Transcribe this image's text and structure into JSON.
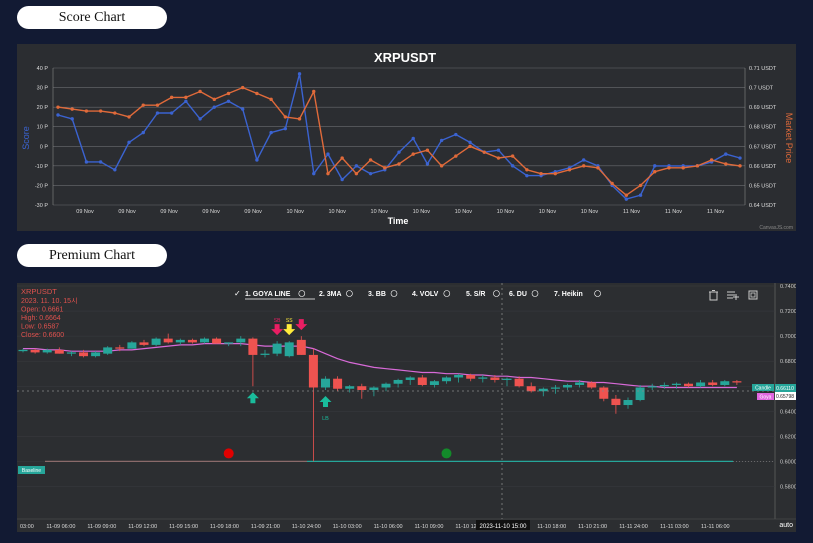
{
  "score_section": {
    "label": "Score Chart"
  },
  "premium_section": {
    "label": "Premium Chart"
  },
  "chart_data": [
    {
      "type": "line",
      "title": "XRPUSDT",
      "xlabel": "Time",
      "ylabel": "Score",
      "y2label": "Market Price",
      "ylim": [
        -30,
        40
      ],
      "y2lim": [
        0.64,
        0.71
      ],
      "y_ticks": [
        "40 P",
        "30 P",
        "20 P",
        "10 P",
        "0 P",
        "-10 P",
        "-20 P",
        "-30 P"
      ],
      "y2_ticks": [
        "0.71 USDT",
        "0.7 USDT",
        "0.69 USDT",
        "0.68 USDT",
        "0.67 USDT",
        "0.66 USDT",
        "0.65 USDT",
        "0.64 USDT"
      ],
      "x_tick_labels": [
        "09 Nov",
        "09 Nov",
        "09 Nov",
        "09 Nov",
        "09 Nov",
        "10 Nov",
        "10 Nov",
        "10 Nov",
        "10 Nov",
        "10 Nov",
        "10 Nov",
        "10 Nov",
        "10 Nov",
        "11 Nov",
        "11 Nov",
        "11 Nov"
      ],
      "credit": "CanvasJS.com",
      "grid": true,
      "series": [
        {
          "name": "Score",
          "color": "#3b63d1",
          "values": [
            16,
            14,
            -8,
            -8,
            -12,
            2,
            7,
            17,
            17,
            23,
            14,
            20,
            23,
            19,
            -7,
            7,
            9,
            37,
            -14,
            -4,
            -17,
            -10,
            -14,
            -12,
            -3,
            4,
            -9,
            3,
            6,
            2,
            -3,
            -2,
            -10,
            -15,
            -15,
            -13,
            -11,
            -7,
            -10,
            -20,
            -27,
            -25,
            -10,
            -10,
            -10,
            -10,
            -8,
            -4,
            -6
          ]
        },
        {
          "name": "Market Price",
          "color": "#e06a3a",
          "values": [
            0.69,
            0.689,
            0.688,
            0.688,
            0.687,
            0.685,
            0.691,
            0.691,
            0.695,
            0.695,
            0.698,
            0.694,
            0.697,
            0.7,
            0.697,
            0.694,
            0.685,
            0.684,
            0.698,
            0.656,
            0.664,
            0.656,
            0.663,
            0.659,
            0.661,
            0.666,
            0.668,
            0.66,
            0.665,
            0.67,
            0.667,
            0.664,
            0.665,
            0.658,
            0.656,
            0.656,
            0.658,
            0.66,
            0.659,
            0.651,
            0.645,
            0.65,
            0.657,
            0.659,
            0.659,
            0.66,
            0.663,
            0.661,
            0.66
          ]
        }
      ]
    },
    {
      "type": "candlestick",
      "symbol": "XRPUSDT",
      "ohlc_header": [
        "2023. 11. 10. 15시",
        "Open: 0.6661",
        "High: 0.6664",
        "Low: 0.6587",
        "Close: 0.6600"
      ],
      "menu": [
        "1. GOYA LINE",
        "2. 3MA",
        "3. BB",
        "4. VOLV",
        "5. S/R",
        "6. DU",
        "7. Heikin"
      ],
      "ylim": [
        0.57,
        0.74
      ],
      "y_ticks": [
        "0.74000",
        "0.72000",
        "0.70000",
        "0.68000",
        "0.66000",
        "0.64000",
        "0.62000",
        "0.60000",
        "0.58000"
      ],
      "x_ticks": [
        "03:00",
        "11-09 06:00",
        "11-09 09:00",
        "11-09 12:00",
        "11-09 15:00",
        "11-09 18:00",
        "11-09 21:00",
        "11-10 24:00",
        "11-10 03:00",
        "11-10 06:00",
        "11-10 09:00",
        "11-10 12:00",
        "11-10 15:00",
        "11-10 18:00",
        "11-10 21:00",
        "11-11 24:00",
        "11-11 03:00",
        "11-11 06:00"
      ],
      "crosshair_time": "2023-11-10 15:00",
      "candle_price_label": "Candle",
      "candle_price": "0.66110",
      "goya_label": "Goya",
      "goya_value": "0.65798",
      "baseline_label": "Baseline",
      "baseline_value": 0.6,
      "scale_mode": "auto",
      "candles": [
        [
          0.688,
          0.69,
          0.687,
          0.689
        ],
        [
          0.689,
          0.69,
          0.686,
          0.687
        ],
        [
          0.687,
          0.69,
          0.686,
          0.689
        ],
        [
          0.689,
          0.691,
          0.686,
          0.686
        ],
        [
          0.686,
          0.688,
          0.684,
          0.687
        ],
        [
          0.687,
          0.689,
          0.683,
          0.684
        ],
        [
          0.684,
          0.688,
          0.683,
          0.687
        ],
        [
          0.686,
          0.692,
          0.685,
          0.691
        ],
        [
          0.691,
          0.693,
          0.688,
          0.69
        ],
        [
          0.69,
          0.696,
          0.69,
          0.695
        ],
        [
          0.695,
          0.697,
          0.692,
          0.693
        ],
        [
          0.693,
          0.699,
          0.692,
          0.698
        ],
        [
          0.698,
          0.702,
          0.694,
          0.695
        ],
        [
          0.695,
          0.698,
          0.693,
          0.697
        ],
        [
          0.697,
          0.698,
          0.694,
          0.695
        ],
        [
          0.695,
          0.699,
          0.694,
          0.698
        ],
        [
          0.698,
          0.699,
          0.694,
          0.694
        ],
        [
          0.694,
          0.695,
          0.692,
          0.695
        ],
        [
          0.695,
          0.7,
          0.692,
          0.698
        ],
        [
          0.698,
          0.699,
          0.66,
          0.685
        ],
        [
          0.685,
          0.689,
          0.683,
          0.686
        ],
        [
          0.686,
          0.696,
          0.684,
          0.694
        ],
        [
          0.684,
          0.696,
          0.683,
          0.695
        ],
        [
          0.697,
          0.7,
          0.685,
          0.685
        ],
        [
          0.685,
          0.69,
          0.6,
          0.659
        ],
        [
          0.659,
          0.668,
          0.657,
          0.666
        ],
        [
          0.666,
          0.668,
          0.656,
          0.658
        ],
        [
          0.658,
          0.661,
          0.655,
          0.66
        ],
        [
          0.66,
          0.662,
          0.65,
          0.657
        ],
        [
          0.657,
          0.66,
          0.652,
          0.659
        ],
        [
          0.659,
          0.663,
          0.656,
          0.662
        ],
        [
          0.662,
          0.666,
          0.659,
          0.665
        ],
        [
          0.665,
          0.668,
          0.661,
          0.667
        ],
        [
          0.667,
          0.669,
          0.66,
          0.661
        ],
        [
          0.661,
          0.665,
          0.659,
          0.664
        ],
        [
          0.664,
          0.668,
          0.662,
          0.667
        ],
        [
          0.667,
          0.67,
          0.663,
          0.669
        ],
        [
          0.669,
          0.67,
          0.664,
          0.666
        ],
        [
          0.666,
          0.669,
          0.663,
          0.667
        ],
        [
          0.667,
          0.669,
          0.663,
          0.665
        ],
        [
          0.665,
          0.667,
          0.66,
          0.666
        ],
        [
          0.666,
          0.668,
          0.659,
          0.66
        ],
        [
          0.66,
          0.663,
          0.655,
          0.656
        ],
        [
          0.656,
          0.659,
          0.652,
          0.658
        ],
        [
          0.658,
          0.661,
          0.654,
          0.659
        ],
        [
          0.659,
          0.662,
          0.657,
          0.661
        ],
        [
          0.661,
          0.665,
          0.659,
          0.663
        ],
        [
          0.663,
          0.664,
          0.658,
          0.659
        ],
        [
          0.659,
          0.66,
          0.648,
          0.65
        ],
        [
          0.65,
          0.653,
          0.638,
          0.645
        ],
        [
          0.645,
          0.651,
          0.642,
          0.649
        ],
        [
          0.649,
          0.661,
          0.648,
          0.659
        ],
        [
          0.659,
          0.662,
          0.657,
          0.66
        ],
        [
          0.66,
          0.663,
          0.658,
          0.661
        ],
        [
          0.661,
          0.663,
          0.658,
          0.662
        ],
        [
          0.662,
          0.663,
          0.659,
          0.66
        ],
        [
          0.66,
          0.665,
          0.659,
          0.663
        ],
        [
          0.663,
          0.665,
          0.66,
          0.661
        ],
        [
          0.661,
          0.665,
          0.66,
          0.664
        ],
        [
          0.664,
          0.665,
          0.661,
          0.663
        ]
      ],
      "goya_line": [
        0.69,
        0.69,
        0.689,
        0.689,
        0.688,
        0.688,
        0.688,
        0.688,
        0.689,
        0.689,
        0.69,
        0.691,
        0.692,
        0.693,
        0.693,
        0.694,
        0.694,
        0.694,
        0.694,
        0.693,
        0.692,
        0.692,
        0.692,
        0.692,
        0.69,
        0.686,
        0.682,
        0.679,
        0.677,
        0.675,
        0.674,
        0.673,
        0.672,
        0.671,
        0.671,
        0.67,
        0.67,
        0.669,
        0.669,
        0.668,
        0.668,
        0.667,
        0.667,
        0.666,
        0.665,
        0.664,
        0.664,
        0.663,
        0.663,
        0.662,
        0.661,
        0.66,
        0.66,
        0.659,
        0.659,
        0.659,
        0.659,
        0.659,
        0.659,
        0.659
      ],
      "markers": [
        {
          "type": "arrow-up",
          "color": "#1abc9c",
          "candle": 19,
          "label": ""
        },
        {
          "type": "arrow-up",
          "color": "#1abc9c",
          "candle": 25,
          "label": "LB"
        },
        {
          "type": "arrow-down",
          "color": "#e91e63",
          "candle": 21,
          "label": "SB"
        },
        {
          "type": "arrow-down",
          "color": "#ffeb3b",
          "candle": 22,
          "label": "SS"
        },
        {
          "type": "arrow-down",
          "color": "#e91e63",
          "candle": 23,
          "label": ""
        },
        {
          "type": "dot",
          "color": "#e00000",
          "candle": 17
        },
        {
          "type": "dot",
          "color": "#138a2a",
          "candle": 35
        }
      ]
    }
  ]
}
